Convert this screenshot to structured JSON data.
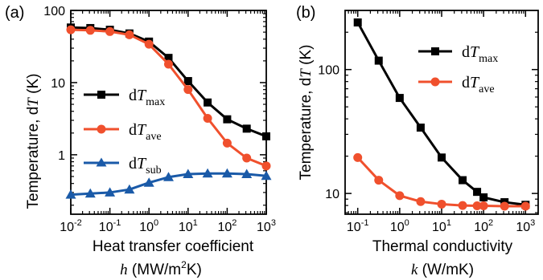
{
  "chart_data": [
    {
      "panel": "(a)",
      "type": "line",
      "xscale": "log",
      "yscale": "log",
      "xlim": [
        0.01,
        1000
      ],
      "ylim": [
        0.15,
        100
      ],
      "xlabel": "Heat transfer coefficient",
      "xlabel_line2_symbol": "h",
      "xlabel_line2_unit_prefix": " (MW/m",
      "xlabel_line2_unit_exp": "2",
      "xlabel_line2_unit_suffix": "K)",
      "ylabel_text": "Temperature, d",
      "ylabel_symbol": "T",
      "ylabel_unit": " (K)",
      "yticks": [
        {
          "value": 1,
          "label": "1"
        },
        {
          "value": 10,
          "label": "10"
        },
        {
          "value": 100,
          "label": "100"
        }
      ],
      "xticks": [
        {
          "value": 0.01,
          "base": "10",
          "exp": "-2"
        },
        {
          "value": 0.1,
          "base": "10",
          "exp": "-1"
        },
        {
          "value": 1,
          "base": "10",
          "exp": "0"
        },
        {
          "value": 10,
          "base": "10",
          "exp": "1"
        },
        {
          "value": 100,
          "base": "10",
          "exp": "2"
        },
        {
          "value": 1000,
          "base": "10",
          "exp": "3"
        }
      ],
      "legend_position": "right",
      "series": [
        {
          "name_prefix": "d",
          "name_symbol": "T",
          "name_sub": "max",
          "color": "#000000",
          "marker": "square",
          "x": [
            0.01,
            0.0316,
            0.1,
            0.316,
            1,
            3.16,
            10,
            31.6,
            100,
            316,
            1000
          ],
          "y": [
            58,
            57,
            54,
            48,
            37,
            22,
            10.5,
            5.3,
            3.1,
            2.3,
            1.8
          ]
        },
        {
          "name_prefix": "d",
          "name_symbol": "T",
          "name_sub": "ave",
          "color": "#f0502d",
          "marker": "circle",
          "x": [
            0.01,
            0.0316,
            0.1,
            0.316,
            1,
            3.16,
            10,
            31.6,
            100,
            316,
            1000
          ],
          "y": [
            54,
            53,
            51,
            46,
            34,
            18,
            8,
            3.2,
            1.45,
            0.9,
            0.7
          ]
        },
        {
          "name_prefix": "d",
          "name_symbol": "T",
          "name_sub": "sub",
          "color": "#1a5aa8",
          "marker": "triangle",
          "x": [
            0.01,
            0.0316,
            0.1,
            0.316,
            1,
            3.16,
            10,
            31.6,
            100,
            316,
            1000
          ],
          "y": [
            0.28,
            0.29,
            0.3,
            0.33,
            0.41,
            0.49,
            0.54,
            0.55,
            0.55,
            0.54,
            0.51
          ]
        }
      ]
    },
    {
      "panel": "(b)",
      "type": "line",
      "xscale": "log",
      "yscale": "log",
      "xlim": [
        0.05,
        2000
      ],
      "ylim": [
        6.8,
        300
      ],
      "xlabel": "Thermal conductivity",
      "xlabel_line2_symbol": "k",
      "xlabel_line2_unit_prefix": " (W/mK)",
      "xlabel_line2_unit_exp": "",
      "xlabel_line2_unit_suffix": "",
      "ylabel_text": "Temperature, d",
      "ylabel_symbol": "T",
      "ylabel_unit": " (K)",
      "yticks": [
        {
          "value": 10,
          "label": "10"
        },
        {
          "value": 100,
          "label": "100"
        }
      ],
      "xticks": [
        {
          "value": 0.1,
          "base": "10",
          "exp": "-1"
        },
        {
          "value": 1,
          "base": "10",
          "exp": "0"
        },
        {
          "value": 10,
          "base": "10",
          "exp": "1"
        },
        {
          "value": 100,
          "base": "10",
          "exp": "2"
        },
        {
          "value": 1000,
          "base": "10",
          "exp": "3"
        }
      ],
      "legend_position": "top-right",
      "series": [
        {
          "name_prefix": "d",
          "name_symbol": "T",
          "name_sub": "max",
          "color": "#000000",
          "marker": "square",
          "x": [
            0.1,
            0.316,
            1,
            3.16,
            10,
            31.6,
            70,
            100,
            316,
            1000
          ],
          "y": [
            240,
            118,
            59,
            34,
            19.5,
            12.8,
            10.3,
            9.3,
            8.5,
            8.1
          ]
        },
        {
          "name_prefix": "d",
          "name_symbol": "T",
          "name_sub": "ave",
          "color": "#f0502d",
          "marker": "circle",
          "x": [
            0.1,
            0.316,
            1,
            3.16,
            10,
            31.6,
            70,
            100,
            316,
            1000
          ],
          "y": [
            19.5,
            12.8,
            9.6,
            8.6,
            8.2,
            8.0,
            7.95,
            7.95,
            7.9,
            7.9
          ]
        }
      ]
    }
  ]
}
